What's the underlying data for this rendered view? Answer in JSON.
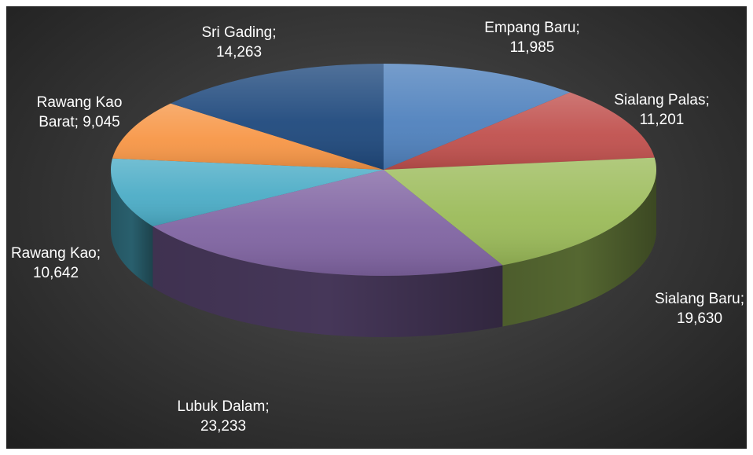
{
  "chart_data": {
    "type": "pie",
    "style": "3d",
    "title": "",
    "legend": "none",
    "slices": [
      {
        "category": "Empang Baru",
        "label_lines": [
          "Empang Baru;",
          "11,985"
        ],
        "value": 11985,
        "color": "#4f81bd"
      },
      {
        "category": "Sialang Palas",
        "label_lines": [
          "Sialang Palas;",
          "11,201"
        ],
        "value": 11201,
        "color": "#c0504d"
      },
      {
        "category": "Sialang Baru",
        "label_lines": [
          "Sialang Baru;",
          "19,630"
        ],
        "value": 19630,
        "color": "#9bbb59"
      },
      {
        "category": "Lubuk Dalam",
        "label_lines": [
          "Lubuk Dalam;",
          "23,233"
        ],
        "value": 23233,
        "color": "#8064a2"
      },
      {
        "category": "Rawang Kao",
        "label_lines": [
          "Rawang Kao;",
          "10,642"
        ],
        "value": 10642,
        "color": "#4bacc6"
      },
      {
        "category": "Rawang Kao Barat",
        "label_lines": [
          "Rawang Kao",
          "Barat; 9,045"
        ],
        "value": 9045,
        "color": "#f79646"
      },
      {
        "category": "Sri Gading",
        "label_lines": [
          "Sri Gading;",
          "14,263"
        ],
        "value": 14263,
        "color": "#1f497d"
      }
    ]
  }
}
